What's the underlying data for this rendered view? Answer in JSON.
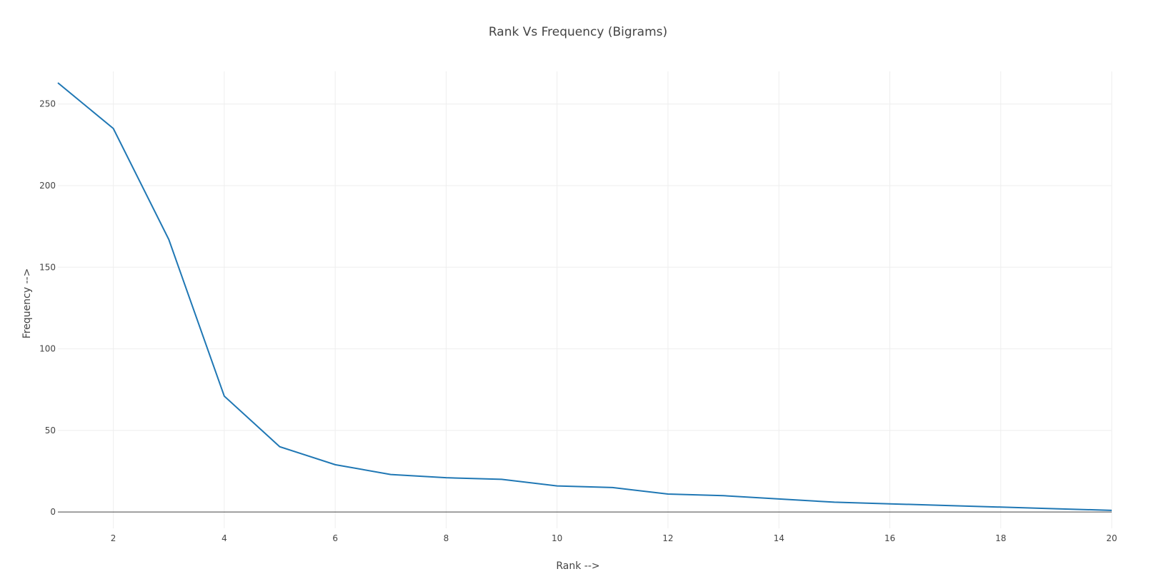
{
  "chart_data": {
    "type": "line",
    "title": "Rank Vs Frequency (Bigrams)",
    "xlabel": "Rank -->",
    "ylabel": "Frequency -->",
    "xlim": [
      1,
      20
    ],
    "ylim": [
      -10,
      270
    ],
    "xticks": [
      2,
      4,
      6,
      8,
      10,
      12,
      14,
      16,
      18,
      20
    ],
    "yticks": [
      0,
      50,
      100,
      150,
      200,
      250
    ],
    "grid": true,
    "line_color": "#1f77b4",
    "series": [
      {
        "x": [
          1,
          2,
          3,
          4,
          5,
          6,
          7,
          8,
          9,
          10,
          11,
          12,
          13,
          14,
          15,
          16,
          17,
          18,
          19,
          20
        ],
        "values": [
          263,
          235,
          167,
          71,
          40,
          29,
          23,
          21,
          20,
          16,
          15,
          11,
          10,
          8,
          6,
          5,
          4,
          3,
          2,
          1
        ]
      }
    ]
  }
}
